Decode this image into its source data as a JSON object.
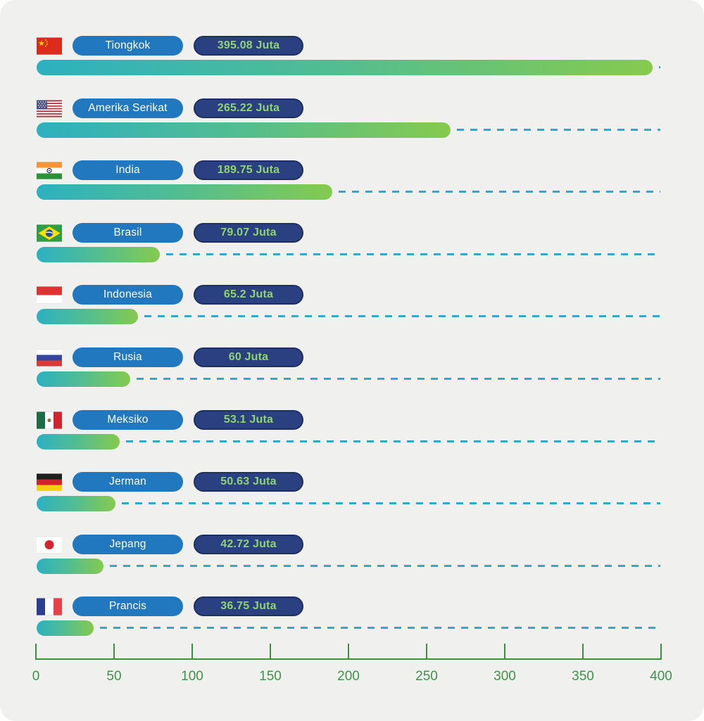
{
  "chart_data": {
    "type": "bar",
    "orientation": "horizontal",
    "title": "",
    "unit": "Juta",
    "categories": [
      "Tiongkok",
      "Amerika Serikat",
      "India",
      "Brasil",
      "Indonesia",
      "Rusia",
      "Meksiko",
      "Jerman",
      "Jepang",
      "Prancis"
    ],
    "values": [
      395.08,
      265.22,
      189.75,
      79.07,
      65.2,
      60,
      53.1,
      50.63,
      42.72,
      36.75
    ],
    "value_labels": [
      "395.08 Juta",
      "265.22 Juta",
      "189.75 Juta",
      "79.07 Juta",
      "65.2 Juta",
      "60 Juta",
      "53.1 Juta",
      "50.63 Juta",
      "42.72 Juta",
      "36.75 Juta"
    ],
    "flags": [
      "cn",
      "us",
      "in",
      "br",
      "id",
      "ru",
      "mx",
      "de",
      "jp",
      "fr"
    ],
    "xlim": [
      0,
      400
    ],
    "x_ticks": [
      0,
      50,
      100,
      150,
      200,
      250,
      300,
      350,
      400
    ],
    "xlabel": "",
    "ylabel": "",
    "legend": "none",
    "grid": "dashed horizontal guide line per row"
  },
  "colors": {
    "background": "#f0f0ee",
    "country_pill": "#2278be",
    "country_text": "#ffffff",
    "value_pill": "#2b4080",
    "value_pill_border": "#1e2f62",
    "value_text": "#8fd473",
    "bar_gradient_start": "#2db1c0",
    "bar_gradient_end": "#86ca4e",
    "dash_line": "#34a8c9",
    "axis": "#37913f",
    "axis_label": "#3f9448"
  }
}
